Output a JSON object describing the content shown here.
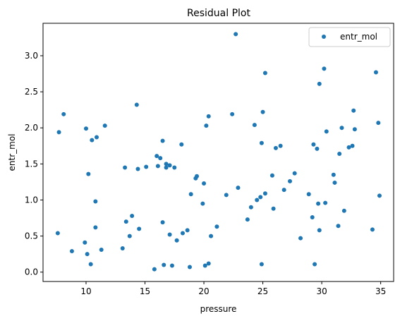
{
  "chart_data": {
    "type": "scatter",
    "title": "Residual Plot",
    "xlabel": "pressure",
    "ylabel": "entr_mol",
    "xlim": [
      6.35,
      36.1
    ],
    "ylim": [
      -0.13,
      3.45
    ],
    "x_ticks": [
      10,
      15,
      20,
      25,
      30,
      35
    ],
    "y_ticks": [
      0.0,
      0.5,
      1.0,
      1.5,
      2.0,
      2.5,
      3.0
    ],
    "x_tick_labels": [
      "10",
      "15",
      "20",
      "25",
      "30",
      "35"
    ],
    "y_tick_labels": [
      "0.0",
      "0.5",
      "1.0",
      "1.5",
      "2.0",
      "2.5",
      "3.0"
    ],
    "grid": false,
    "legend": {
      "placement": "top-right",
      "entries": [
        "entr_mol"
      ]
    },
    "series": [
      {
        "name": "entr_mol",
        "color": "#1f77b4",
        "points": [
          [
            7.6,
            0.54
          ],
          [
            7.7,
            1.94
          ],
          [
            8.1,
            2.19
          ],
          [
            8.8,
            0.29
          ],
          [
            9.9,
            0.41
          ],
          [
            10.0,
            1.99
          ],
          [
            10.1,
            0.25
          ],
          [
            10.2,
            1.36
          ],
          [
            10.4,
            0.11
          ],
          [
            10.5,
            1.83
          ],
          [
            10.8,
            0.98
          ],
          [
            10.8,
            0.62
          ],
          [
            10.9,
            1.87
          ],
          [
            11.3,
            0.31
          ],
          [
            11.6,
            2.03
          ],
          [
            13.1,
            0.33
          ],
          [
            13.4,
            0.7
          ],
          [
            13.3,
            1.45
          ],
          [
            13.7,
            0.5
          ],
          [
            13.9,
            0.78
          ],
          [
            14.3,
            2.32
          ],
          [
            14.4,
            1.43
          ],
          [
            14.5,
            0.6
          ],
          [
            15.1,
            1.46
          ],
          [
            15.8,
            0.04
          ],
          [
            16.0,
            1.61
          ],
          [
            16.1,
            1.47
          ],
          [
            16.3,
            1.58
          ],
          [
            16.5,
            1.82
          ],
          [
            16.5,
            0.69
          ],
          [
            16.6,
            0.1
          ],
          [
            16.8,
            1.45
          ],
          [
            16.8,
            1.5
          ],
          [
            17.1,
            0.52
          ],
          [
            17.1,
            1.48
          ],
          [
            17.3,
            0.09
          ],
          [
            17.5,
            1.45
          ],
          [
            17.7,
            0.44
          ],
          [
            18.1,
            1.77
          ],
          [
            18.2,
            0.54
          ],
          [
            18.6,
            0.58
          ],
          [
            18.8,
            0.07
          ],
          [
            18.9,
            1.08
          ],
          [
            19.3,
            1.3
          ],
          [
            19.4,
            1.33
          ],
          [
            19.9,
            0.95
          ],
          [
            20.0,
            1.23
          ],
          [
            20.1,
            0.09
          ],
          [
            20.2,
            2.03
          ],
          [
            20.4,
            2.16
          ],
          [
            20.4,
            0.12
          ],
          [
            20.6,
            0.5
          ],
          [
            21.1,
            0.63
          ],
          [
            21.9,
            1.07
          ],
          [
            22.4,
            2.19
          ],
          [
            22.7,
            3.3
          ],
          [
            22.9,
            1.17
          ],
          [
            23.7,
            0.73
          ],
          [
            24.0,
            0.9
          ],
          [
            24.3,
            2.04
          ],
          [
            24.5,
            1.0
          ],
          [
            24.8,
            1.04
          ],
          [
            24.9,
            1.79
          ],
          [
            24.9,
            0.11
          ],
          [
            25.0,
            2.22
          ],
          [
            25.2,
            1.09
          ],
          [
            25.2,
            2.76
          ],
          [
            25.8,
            1.34
          ],
          [
            25.9,
            0.88
          ],
          [
            26.1,
            1.72
          ],
          [
            26.5,
            1.75
          ],
          [
            26.8,
            1.14
          ],
          [
            27.3,
            1.26
          ],
          [
            27.7,
            1.37
          ],
          [
            28.2,
            0.47
          ],
          [
            28.9,
            1.08
          ],
          [
            29.2,
            0.76
          ],
          [
            29.3,
            1.77
          ],
          [
            29.4,
            0.11
          ],
          [
            29.6,
            1.71
          ],
          [
            29.7,
            0.95
          ],
          [
            29.8,
            2.61
          ],
          [
            29.8,
            0.58
          ],
          [
            30.2,
            2.82
          ],
          [
            30.3,
            0.96
          ],
          [
            30.4,
            1.95
          ],
          [
            31.0,
            1.35
          ],
          [
            31.1,
            1.24
          ],
          [
            31.4,
            0.64
          ],
          [
            31.5,
            1.64
          ],
          [
            31.7,
            2.0
          ],
          [
            31.9,
            0.85
          ],
          [
            32.3,
            1.73
          ],
          [
            32.7,
            2.24
          ],
          [
            32.6,
            1.75
          ],
          [
            32.8,
            1.98
          ],
          [
            34.3,
            0.59
          ],
          [
            34.6,
            2.77
          ],
          [
            34.8,
            2.07
          ],
          [
            34.9,
            1.06
          ]
        ]
      }
    ]
  }
}
